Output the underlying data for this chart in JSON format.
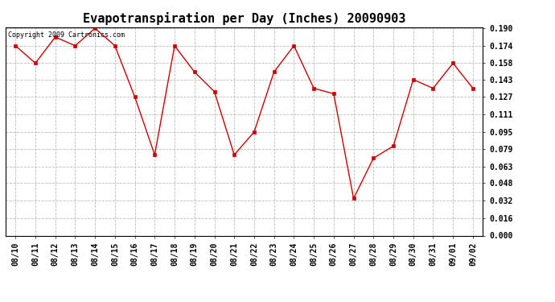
{
  "title": "Evapotranspiration per Day (Inches) 20090903",
  "copyright": "Copyright 2009 Cartronics.com",
  "x_labels": [
    "08/10",
    "08/11",
    "08/12",
    "08/13",
    "08/14",
    "08/15",
    "08/16",
    "08/17",
    "08/18",
    "08/19",
    "08/20",
    "08/21",
    "08/22",
    "08/23",
    "08/24",
    "08/25",
    "08/26",
    "08/27",
    "08/28",
    "08/29",
    "08/30",
    "08/31",
    "09/01",
    "09/02"
  ],
  "y_values": [
    0.174,
    0.158,
    0.182,
    0.174,
    0.19,
    0.174,
    0.127,
    0.074,
    0.174,
    0.15,
    0.132,
    0.074,
    0.095,
    0.15,
    0.174,
    0.135,
    0.13,
    0.034,
    0.071,
    0.082,
    0.143,
    0.135,
    0.158,
    0.135
  ],
  "ylim_min": 0.0,
  "ylim_max": 0.19,
  "yticks": [
    0.0,
    0.016,
    0.032,
    0.048,
    0.063,
    0.079,
    0.095,
    0.111,
    0.127,
    0.143,
    0.158,
    0.174,
    0.19
  ],
  "line_color": "#cc0000",
  "marker": "s",
  "marker_size": 2.5,
  "background_color": "#ffffff",
  "grid_color": "#bbbbbb",
  "title_fontsize": 11,
  "copyright_fontsize": 6,
  "tick_label_fontsize": 7,
  "tick_label_fontweight": "bold",
  "fig_width": 6.9,
  "fig_height": 3.75,
  "dpi": 100
}
